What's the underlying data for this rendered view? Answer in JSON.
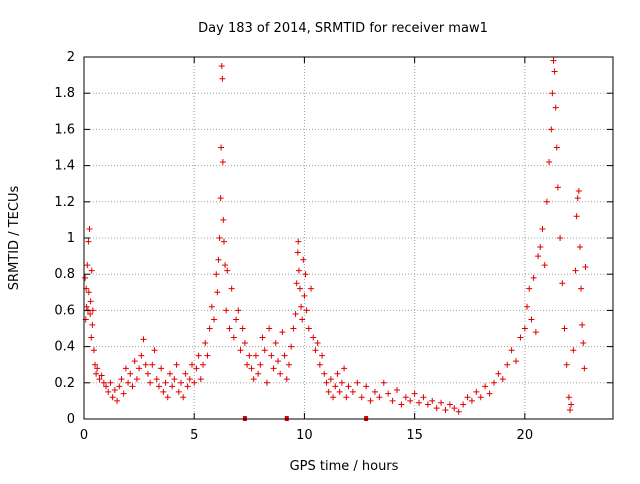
{
  "chart_data": {
    "type": "scatter",
    "title": "Day 183 of 2014, SRMTID for receiver maw1",
    "xlabel": "GPS time / hours",
    "ylabel": "SRMTID / TECUs",
    "xlim": [
      0,
      24
    ],
    "ylim": [
      0,
      2
    ],
    "xticks": [
      0,
      5,
      10,
      15,
      20
    ],
    "xtick_labels": [
      "0",
      "5",
      "10",
      "15",
      "20"
    ],
    "yticks": [
      0,
      0.2,
      0.4,
      0.6,
      0.8,
      1,
      1.2,
      1.4,
      1.6,
      1.8,
      2
    ],
    "ytick_labels": [
      "0",
      "0.2",
      "0.4",
      "0.6",
      "0.8",
      "1",
      "1.2",
      "1.4",
      "1.6",
      "1.8",
      "2"
    ],
    "grid": true,
    "marker": "plus",
    "color": "#e00000",
    "series": [
      {
        "name": "SRMTID",
        "points": [
          [
            0.05,
            0.78
          ],
          [
            0.08,
            0.55
          ],
          [
            0.1,
            0.72
          ],
          [
            0.12,
            0.62
          ],
          [
            0.15,
            0.85
          ],
          [
            0.18,
            0.6
          ],
          [
            0.2,
            0.98
          ],
          [
            0.22,
            0.7
          ],
          [
            0.25,
            1.05
          ],
          [
            0.28,
            0.58
          ],
          [
            0.3,
            0.65
          ],
          [
            0.33,
            0.45
          ],
          [
            0.35,
            0.82
          ],
          [
            0.38,
            0.52
          ],
          [
            0.4,
            0.6
          ],
          [
            0.45,
            0.38
          ],
          [
            0.5,
            0.3
          ],
          [
            0.55,
            0.25
          ],
          [
            0.6,
            0.28
          ],
          [
            0.7,
            0.22
          ],
          [
            0.8,
            0.24
          ],
          [
            0.9,
            0.2
          ],
          [
            1.0,
            0.18
          ],
          [
            1.1,
            0.15
          ],
          [
            1.2,
            0.2
          ],
          [
            1.3,
            0.12
          ],
          [
            1.4,
            0.16
          ],
          [
            1.5,
            0.1
          ],
          [
            1.6,
            0.18
          ],
          [
            1.7,
            0.22
          ],
          [
            1.8,
            0.14
          ],
          [
            1.9,
            0.28
          ],
          [
            2.0,
            0.2
          ],
          [
            2.1,
            0.25
          ],
          [
            2.2,
            0.18
          ],
          [
            2.3,
            0.32
          ],
          [
            2.4,
            0.22
          ],
          [
            2.5,
            0.28
          ],
          [
            2.6,
            0.35
          ],
          [
            2.7,
            0.44
          ],
          [
            2.8,
            0.3
          ],
          [
            2.9,
            0.25
          ],
          [
            3.0,
            0.2
          ],
          [
            3.1,
            0.3
          ],
          [
            3.2,
            0.38
          ],
          [
            3.3,
            0.22
          ],
          [
            3.4,
            0.18
          ],
          [
            3.5,
            0.28
          ],
          [
            3.6,
            0.15
          ],
          [
            3.7,
            0.2
          ],
          [
            3.8,
            0.12
          ],
          [
            3.9,
            0.25
          ],
          [
            4.0,
            0.18
          ],
          [
            4.1,
            0.22
          ],
          [
            4.2,
            0.3
          ],
          [
            4.3,
            0.15
          ],
          [
            4.4,
            0.2
          ],
          [
            4.5,
            0.12
          ],
          [
            4.6,
            0.25
          ],
          [
            4.7,
            0.18
          ],
          [
            4.8,
            0.22
          ],
          [
            4.9,
            0.3
          ],
          [
            5.0,
            0.2
          ],
          [
            5.1,
            0.28
          ],
          [
            5.2,
            0.35
          ],
          [
            5.3,
            0.22
          ],
          [
            5.4,
            0.3
          ],
          [
            5.5,
            0.42
          ],
          [
            5.6,
            0.35
          ],
          [
            5.7,
            0.5
          ],
          [
            5.8,
            0.62
          ],
          [
            5.9,
            0.55
          ],
          [
            6.0,
            0.8
          ],
          [
            6.05,
            0.7
          ],
          [
            6.1,
            0.88
          ],
          [
            6.15,
            1.0
          ],
          [
            6.2,
            1.22
          ],
          [
            6.22,
            1.5
          ],
          [
            6.25,
            1.95
          ],
          [
            6.28,
            1.88
          ],
          [
            6.3,
            1.42
          ],
          [
            6.32,
            1.1
          ],
          [
            6.35,
            0.98
          ],
          [
            6.4,
            0.85
          ],
          [
            6.45,
            0.6
          ],
          [
            6.5,
            0.82
          ],
          [
            6.6,
            0.5
          ],
          [
            6.7,
            0.72
          ],
          [
            6.8,
            0.45
          ],
          [
            6.9,
            0.55
          ],
          [
            7.0,
            0.6
          ],
          [
            7.1,
            0.38
          ],
          [
            7.2,
            0.5
          ],
          [
            7.3,
            0.42
          ],
          [
            7.4,
            0.3
          ],
          [
            7.5,
            0.35
          ],
          [
            7.6,
            0.28
          ],
          [
            7.7,
            0.22
          ],
          [
            7.8,
            0.35
          ],
          [
            7.9,
            0.25
          ],
          [
            8.0,
            0.3
          ],
          [
            8.1,
            0.45
          ],
          [
            8.2,
            0.38
          ],
          [
            8.3,
            0.2
          ],
          [
            8.4,
            0.5
          ],
          [
            8.5,
            0.35
          ],
          [
            8.6,
            0.28
          ],
          [
            8.7,
            0.42
          ],
          [
            8.8,
            0.32
          ],
          [
            8.9,
            0.25
          ],
          [
            9.0,
            0.48
          ],
          [
            9.1,
            0.35
          ],
          [
            9.2,
            0.22
          ],
          [
            9.3,
            0.3
          ],
          [
            9.4,
            0.4
          ],
          [
            9.5,
            0.5
          ],
          [
            9.6,
            0.58
          ],
          [
            9.65,
            0.75
          ],
          [
            9.7,
            0.92
          ],
          [
            9.72,
            0.98
          ],
          [
            9.75,
            0.82
          ],
          [
            9.8,
            0.72
          ],
          [
            9.85,
            0.62
          ],
          [
            9.9,
            0.55
          ],
          [
            9.95,
            0.88
          ],
          [
            10.0,
            0.68
          ],
          [
            10.05,
            0.8
          ],
          [
            10.1,
            0.6
          ],
          [
            10.2,
            0.5
          ],
          [
            10.3,
            0.72
          ],
          [
            10.4,
            0.45
          ],
          [
            10.5,
            0.38
          ],
          [
            10.6,
            0.42
          ],
          [
            10.7,
            0.3
          ],
          [
            10.8,
            0.35
          ],
          [
            10.9,
            0.25
          ],
          [
            11.0,
            0.2
          ],
          [
            11.1,
            0.15
          ],
          [
            11.2,
            0.22
          ],
          [
            11.3,
            0.12
          ],
          [
            11.4,
            0.18
          ],
          [
            11.5,
            0.25
          ],
          [
            11.6,
            0.15
          ],
          [
            11.7,
            0.2
          ],
          [
            11.8,
            0.28
          ],
          [
            11.9,
            0.12
          ],
          [
            12.0,
            0.18
          ],
          [
            12.2,
            0.15
          ],
          [
            12.4,
            0.2
          ],
          [
            12.6,
            0.12
          ],
          [
            12.8,
            0.18
          ],
          [
            13.0,
            0.1
          ],
          [
            13.2,
            0.15
          ],
          [
            13.4,
            0.12
          ],
          [
            13.6,
            0.2
          ],
          [
            13.8,
            0.14
          ],
          [
            14.0,
            0.1
          ],
          [
            14.2,
            0.16
          ],
          [
            14.4,
            0.08
          ],
          [
            14.6,
            0.12
          ],
          [
            14.8,
            0.1
          ],
          [
            15.0,
            0.14
          ],
          [
            15.2,
            0.09
          ],
          [
            15.4,
            0.12
          ],
          [
            15.6,
            0.08
          ],
          [
            15.8,
            0.1
          ],
          [
            16.0,
            0.06
          ],
          [
            16.2,
            0.09
          ],
          [
            16.4,
            0.05
          ],
          [
            16.6,
            0.08
          ],
          [
            16.8,
            0.06
          ],
          [
            17.0,
            0.04
          ],
          [
            17.2,
            0.08
          ],
          [
            17.4,
            0.12
          ],
          [
            17.6,
            0.1
          ],
          [
            17.8,
            0.15
          ],
          [
            18.0,
            0.12
          ],
          [
            18.2,
            0.18
          ],
          [
            18.4,
            0.14
          ],
          [
            18.6,
            0.2
          ],
          [
            18.8,
            0.25
          ],
          [
            19.0,
            0.22
          ],
          [
            19.2,
            0.3
          ],
          [
            19.4,
            0.38
          ],
          [
            19.6,
            0.32
          ],
          [
            19.8,
            0.45
          ],
          [
            20.0,
            0.5
          ],
          [
            20.1,
            0.62
          ],
          [
            20.2,
            0.72
          ],
          [
            20.3,
            0.55
          ],
          [
            20.4,
            0.78
          ],
          [
            20.5,
            0.48
          ],
          [
            20.6,
            0.9
          ],
          [
            20.7,
            0.95
          ],
          [
            20.8,
            1.05
          ],
          [
            20.9,
            0.85
          ],
          [
            21.0,
            1.2
          ],
          [
            21.1,
            1.42
          ],
          [
            21.2,
            1.6
          ],
          [
            21.25,
            1.8
          ],
          [
            21.3,
            1.98
          ],
          [
            21.35,
            1.92
          ],
          [
            21.4,
            1.72
          ],
          [
            21.45,
            1.5
          ],
          [
            21.5,
            1.28
          ],
          [
            21.6,
            1.0
          ],
          [
            21.7,
            0.75
          ],
          [
            21.8,
            0.5
          ],
          [
            21.9,
            0.3
          ],
          [
            22.0,
            0.12
          ],
          [
            22.05,
            0.05
          ],
          [
            22.1,
            0.08
          ],
          [
            22.2,
            0.38
          ],
          [
            22.3,
            0.82
          ],
          [
            22.35,
            1.12
          ],
          [
            22.4,
            1.22
          ],
          [
            22.45,
            1.26
          ],
          [
            22.5,
            0.95
          ],
          [
            22.55,
            0.72
          ],
          [
            22.6,
            0.52
          ],
          [
            22.65,
            0.42
          ],
          [
            22.7,
            0.28
          ],
          [
            22.75,
            0.84
          ]
        ]
      }
    ],
    "axis_markers_x": [
      7.3,
      9.2,
      12.8
    ]
  }
}
